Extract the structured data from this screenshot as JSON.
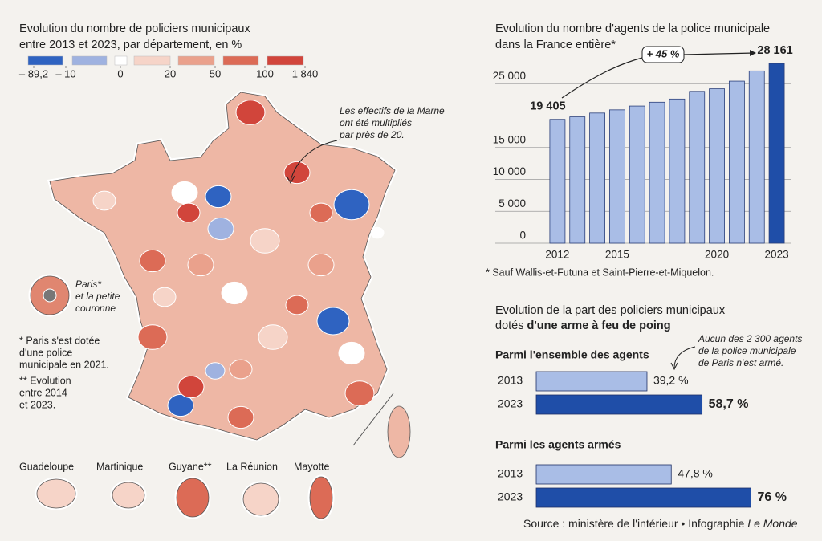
{
  "chart_data": [
    {
      "type": "map",
      "title": [
        "Evolution du nombre de policiers municipaux",
        "entre 2013 et 2023, par département, en %"
      ],
      "legend": {
        "bins": [
          {
            "value": -89.2,
            "label": "– 89,2"
          },
          {
            "value": -10,
            "label": "– 10"
          },
          0,
          20,
          50,
          100,
          {
            "value": 1840,
            "label": "1 840"
          }
        ],
        "colors": [
          "#2f63c1",
          "#9fb2e0",
          "#ffffff",
          "#f6d4c8",
          "#eaa18c",
          "#dc6b56",
          "#d1453b"
        ]
      },
      "annotation": [
        "Les effectifs de la Marne",
        "ont été multipliés",
        "par près de 20."
      ],
      "inset_label": [
        "Paris*",
        "et la petite",
        "couronne"
      ],
      "notes": [
        [
          "* Paris s'est dotée",
          "d'une police",
          "municipale en 2021."
        ],
        [
          "** Evolution",
          "entre 2014",
          "et 2023."
        ]
      ],
      "territories": [
        "Guadeloupe",
        "Martinique",
        "Guyane**",
        "La Réunion",
        "Mayotte"
      ]
    },
    {
      "type": "bar",
      "title": [
        "Evolution du nombre d'agents de la police municipale",
        "dans la France entière*"
      ],
      "categories": [
        "2012",
        null,
        null,
        "2015",
        null,
        null,
        null,
        null,
        "2020",
        null,
        null,
        "2023"
      ],
      "values": [
        19405,
        19800,
        20400,
        20900,
        21500,
        22100,
        22600,
        23800,
        24200,
        25400,
        27000,
        28161
      ],
      "value_labels": [
        "19 405",
        null,
        null,
        null,
        null,
        null,
        null,
        null,
        null,
        null,
        null,
        "28 161"
      ],
      "colors": [
        "#a9bde6",
        "#a9bde6",
        "#a9bde6",
        "#a9bde6",
        "#a9bde6",
        "#a9bde6",
        "#a9bde6",
        "#a9bde6",
        "#a9bde6",
        "#a9bde6",
        "#a9bde6",
        "#1f4ea8"
      ],
      "ylim": [
        0,
        30000
      ],
      "yticks": [
        0,
        {
          "value": 5000,
          "label": "5 000"
        },
        {
          "value": 10000,
          "label": "10 000"
        },
        {
          "value": 15000,
          "label": "15 000"
        },
        {
          "value": 25000,
          "label": "25 000"
        }
      ],
      "grid": true,
      "annotation": "+ 45 %",
      "footnote": "* Sauf Wallis-et-Futuna et Saint-Pierre-et-Miquelon."
    },
    {
      "type": "hbar",
      "title": [
        "Evolution de la part des policiers municipaux",
        "dotés"
      ],
      "title_bold": "d'une arme à feu de poing",
      "xlim": [
        0,
        100
      ],
      "colors": [
        "#a9bde6",
        "#1f4ea8"
      ],
      "groups": [
        {
          "title": "Parmi l'ensemble des agents",
          "categories": [
            "2013",
            "2023"
          ],
          "values": [
            39.2,
            58.7
          ],
          "value_labels": [
            "39,2 %",
            "58,7 %"
          ]
        },
        {
          "title": "Parmi les agents armés",
          "categories": [
            "2013",
            "2023"
          ],
          "values": [
            47.8,
            76
          ],
          "value_labels": [
            "47,8 %",
            "76 %"
          ]
        }
      ],
      "annotation": [
        "Aucun des 2 300 agents",
        "de la police municipale",
        "de Paris n'est armé."
      ]
    }
  ],
  "source": {
    "text": "Source : ministère de l'intérieur • Infographie",
    "italic": "Le Monde"
  }
}
